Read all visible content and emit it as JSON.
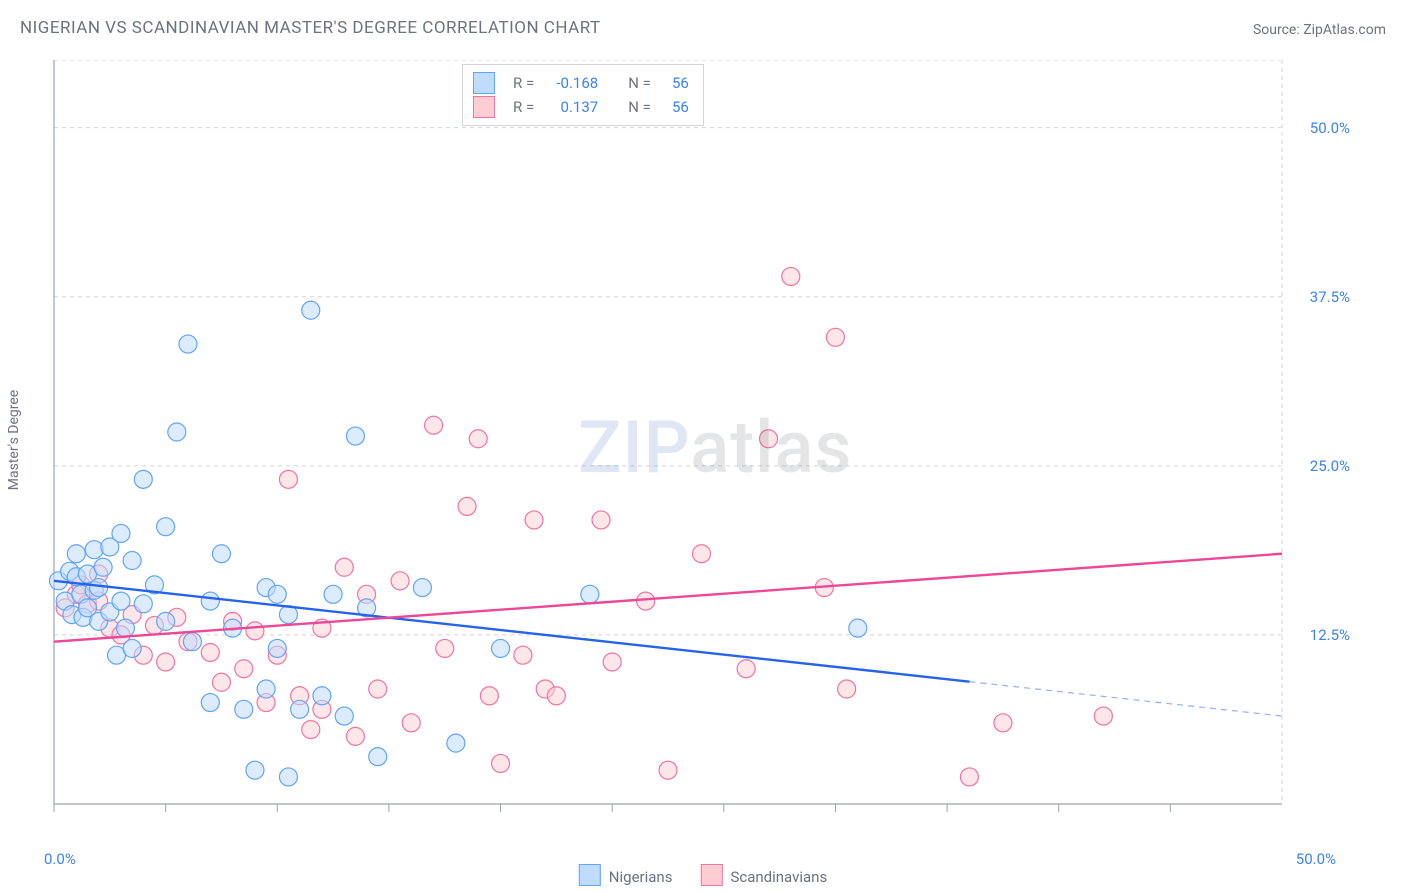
{
  "title": "NIGERIAN VS SCANDINAVIAN MASTER'S DEGREE CORRELATION CHART",
  "source_label": "Source: ZipAtlas.com",
  "ylabel": "Master's Degree",
  "watermark": {
    "part1": "ZIP",
    "part2": "atlas"
  },
  "chart": {
    "type": "scatter",
    "background_color": "#ffffff",
    "grid_color": "#d1d5db",
    "axis_color": "#9ca3af",
    "tick_label_color": "#3b82f6",
    "text_color": "#6b7280",
    "xlim": [
      0,
      55
    ],
    "ylim": [
      0,
      55
    ],
    "y_gridlines": [
      12.5,
      25,
      37.5,
      50,
      55
    ],
    "y_tick_labels": [
      "12.5%",
      "25.0%",
      "37.5%",
      "50.0%"
    ],
    "y_tick_values": [
      12.5,
      25,
      37.5,
      50
    ],
    "x_tick_values": [
      0,
      5,
      10,
      15,
      20,
      25,
      30,
      35,
      40,
      45,
      50
    ],
    "x_left_label": "0.0%",
    "x_right_label": "50.0%",
    "marker_radius": 9,
    "marker_stroke_width": 1.2,
    "trend_line_width": 2.4,
    "series": {
      "nigerians": {
        "label": "Nigerians",
        "fill": "#bfdbfe",
        "stroke": "#60a5fa",
        "fill_opacity": 0.55,
        "trend_color": "#2563eb",
        "trend_y_at_x0": 16.5,
        "trend_y_at_xmax": 6.5,
        "trend_solid_until_x": 41,
        "points": [
          [
            0.2,
            16.5
          ],
          [
            0.5,
            15.0
          ],
          [
            0.7,
            17.2
          ],
          [
            0.8,
            14.0
          ],
          [
            1.0,
            16.8
          ],
          [
            1.0,
            18.5
          ],
          [
            1.2,
            15.5
          ],
          [
            1.3,
            13.8
          ],
          [
            1.5,
            17.0
          ],
          [
            1.5,
            14.5
          ],
          [
            1.8,
            18.8
          ],
          [
            1.8,
            15.8
          ],
          [
            2.0,
            16.0
          ],
          [
            2.0,
            13.5
          ],
          [
            2.2,
            17.5
          ],
          [
            2.5,
            19.0
          ],
          [
            2.5,
            14.2
          ],
          [
            2.8,
            11.0
          ],
          [
            3.0,
            20.0
          ],
          [
            3.0,
            15.0
          ],
          [
            3.2,
            13.0
          ],
          [
            3.5,
            11.5
          ],
          [
            3.5,
            18.0
          ],
          [
            4.0,
            24.0
          ],
          [
            4.0,
            14.8
          ],
          [
            4.5,
            16.2
          ],
          [
            5.0,
            20.5
          ],
          [
            5.0,
            13.5
          ],
          [
            5.5,
            27.5
          ],
          [
            6.0,
            34.0
          ],
          [
            6.2,
            12.0
          ],
          [
            7.0,
            15.0
          ],
          [
            7.0,
            7.5
          ],
          [
            7.5,
            18.5
          ],
          [
            8.0,
            13.0
          ],
          [
            8.5,
            7.0
          ],
          [
            9.0,
            2.5
          ],
          [
            9.5,
            16.0
          ],
          [
            9.5,
            8.5
          ],
          [
            10.0,
            15.5
          ],
          [
            10.0,
            11.5
          ],
          [
            10.5,
            14.0
          ],
          [
            10.5,
            2.0
          ],
          [
            11.0,
            7.0
          ],
          [
            11.5,
            36.5
          ],
          [
            12.0,
            8.0
          ],
          [
            12.5,
            15.5
          ],
          [
            13.0,
            6.5
          ],
          [
            13.5,
            27.2
          ],
          [
            14.0,
            14.5
          ],
          [
            14.5,
            3.5
          ],
          [
            16.5,
            16.0
          ],
          [
            18.0,
            4.5
          ],
          [
            20.0,
            11.5
          ],
          [
            24.0,
            15.5
          ],
          [
            36.0,
            13.0
          ]
        ]
      },
      "scandinavians": {
        "label": "Scandinavians",
        "fill": "#fecdd3",
        "stroke": "#f472a1",
        "fill_opacity": 0.5,
        "trend_color": "#ec4899",
        "trend_y_at_x0": 12.0,
        "trend_y_at_xmax": 18.5,
        "trend_solid_until_x": 55,
        "points": [
          [
            0.5,
            14.5
          ],
          [
            1.0,
            15.5
          ],
          [
            1.2,
            16.2
          ],
          [
            1.5,
            14.8
          ],
          [
            2.0,
            15.0
          ],
          [
            2.0,
            17.0
          ],
          [
            2.5,
            13.0
          ],
          [
            3.0,
            12.5
          ],
          [
            3.5,
            14.0
          ],
          [
            4.0,
            11.0
          ],
          [
            4.5,
            13.2
          ],
          [
            5.0,
            10.5
          ],
          [
            5.5,
            13.8
          ],
          [
            6.0,
            12.0
          ],
          [
            7.0,
            11.2
          ],
          [
            7.5,
            9.0
          ],
          [
            8.0,
            13.5
          ],
          [
            8.5,
            10.0
          ],
          [
            9.0,
            12.8
          ],
          [
            9.5,
            7.5
          ],
          [
            10.0,
            11.0
          ],
          [
            10.5,
            24.0
          ],
          [
            11.0,
            8.0
          ],
          [
            11.5,
            5.5
          ],
          [
            12.0,
            13.0
          ],
          [
            12.0,
            7.0
          ],
          [
            13.0,
            17.5
          ],
          [
            13.5,
            5.0
          ],
          [
            14.0,
            15.5
          ],
          [
            14.5,
            8.5
          ],
          [
            15.5,
            16.5
          ],
          [
            16.0,
            6.0
          ],
          [
            17.0,
            28.0
          ],
          [
            17.5,
            11.5
          ],
          [
            18.5,
            22.0
          ],
          [
            19.0,
            27.0
          ],
          [
            19.5,
            8.0
          ],
          [
            20.0,
            3.0
          ],
          [
            21.0,
            11.0
          ],
          [
            21.5,
            21.0
          ],
          [
            22.0,
            8.5
          ],
          [
            22.5,
            8.0
          ],
          [
            24.5,
            21.0
          ],
          [
            25.0,
            10.5
          ],
          [
            26.5,
            15.0
          ],
          [
            27.5,
            2.5
          ],
          [
            29.0,
            18.5
          ],
          [
            31.0,
            10.0
          ],
          [
            32.0,
            27.0
          ],
          [
            33.0,
            39.0
          ],
          [
            34.5,
            16.0
          ],
          [
            35.0,
            34.5
          ],
          [
            35.5,
            8.5
          ],
          [
            41.0,
            2.0
          ],
          [
            42.5,
            6.0
          ],
          [
            47.0,
            6.5
          ]
        ]
      }
    },
    "top_legend": {
      "rows": [
        {
          "series": "nigerians",
          "r_label": "R =",
          "r_value": "-0.168",
          "n_label": "N =",
          "n_value": "56"
        },
        {
          "series": "scandinavians",
          "r_label": "R =",
          "r_value": "0.137",
          "n_label": "N =",
          "n_value": "56"
        }
      ]
    }
  }
}
